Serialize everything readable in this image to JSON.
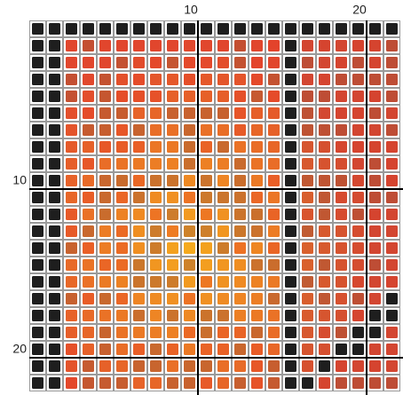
{
  "grid": {
    "column_labels": [
      "10",
      "20"
    ],
    "row_labels": [
      "10",
      "20"
    ]
  }
}
